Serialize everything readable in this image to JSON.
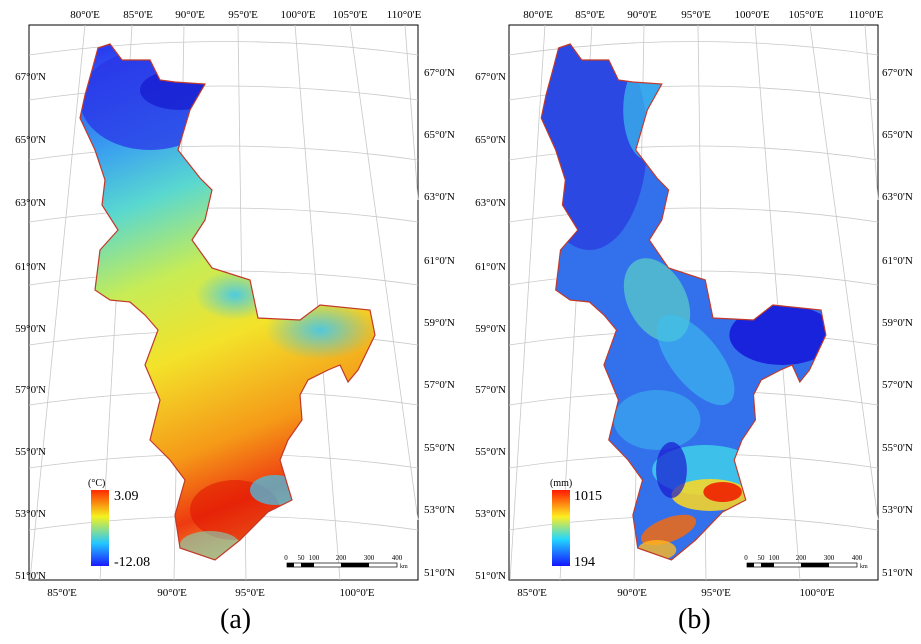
{
  "panels": [
    {
      "id": "a",
      "label": "(a)",
      "legend": {
        "unit": "(°C)",
        "max": "3.09",
        "min": "-12.08"
      },
      "palette": [
        "#1a1aff",
        "#23c8ff",
        "#f4f21e",
        "#ff2a00"
      ]
    },
    {
      "id": "b",
      "label": "(b)",
      "legend": {
        "unit": "(mm)",
        "max": "1015",
        "min": "194"
      },
      "palette": [
        "#1414ff",
        "#23d6ff",
        "#ffee20",
        "#ff1a00"
      ]
    }
  ],
  "top_lon_labels": [
    "80°0'E",
    "85°0'E",
    "90°0'E",
    "95°0'E",
    "100°0'E",
    "105°0'E",
    "110°0'E"
  ],
  "bottom_lon_labels": [
    "85°0'E",
    "90°0'E",
    "95°0'E",
    "100°0'E"
  ],
  "lat_labels": [
    "67°0'N",
    "65°0'N",
    "63°0'N",
    "61°0'N",
    "59°0'N",
    "57°0'N",
    "55°0'N",
    "53°0'N",
    "51°0'N"
  ],
  "scalebar": {
    "ticks": [
      "0",
      "50",
      "100",
      "200",
      "300",
      "400"
    ],
    "unit": "km"
  },
  "colors": {
    "frame": "#000000",
    "graticule": "#bdbdbd",
    "boundary": "#c0392b"
  }
}
